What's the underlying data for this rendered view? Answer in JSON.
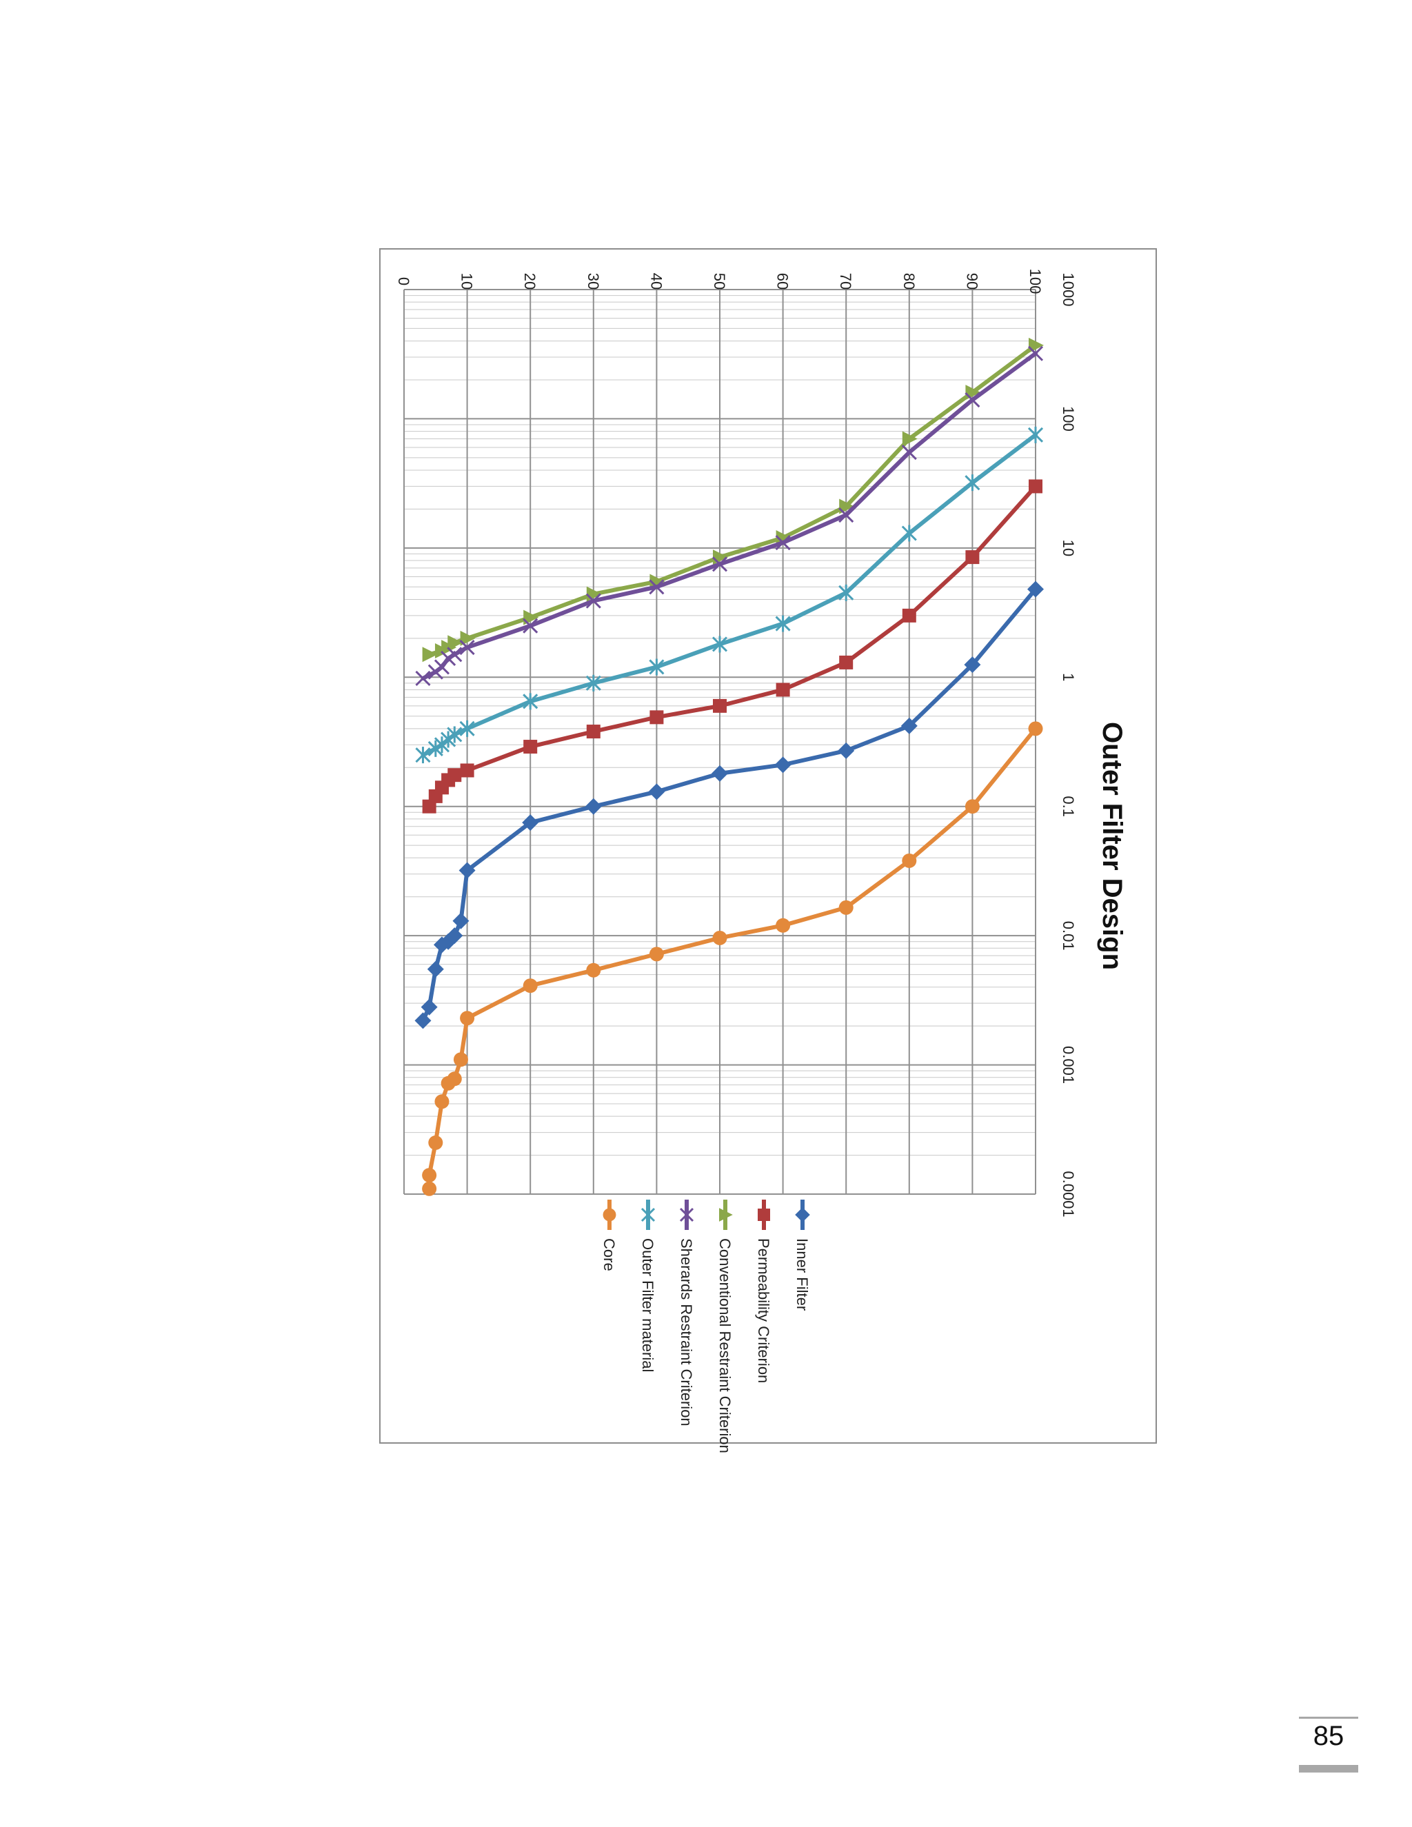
{
  "page": {
    "number": "85"
  },
  "chart_data": {
    "type": "line",
    "orientation": "rotated 90 degrees clockwise",
    "title": "Outer Filter Design",
    "xlabel": "",
    "ylabel": "",
    "x_scale": "log",
    "x_ticks": [
      "1000",
      "100",
      "10",
      "1",
      "0.1",
      "0.01",
      "0.001",
      "0.0001"
    ],
    "y_ticks": [
      "0",
      "10",
      "20",
      "30",
      "40",
      "50",
      "60",
      "70",
      "80",
      "90",
      "100"
    ],
    "xlim": [
      1000,
      0.0001
    ],
    "ylim": [
      0,
      100
    ],
    "grid": true,
    "legend_position": "below the plot, rotated with the chart",
    "series": [
      {
        "name": "Inner Filter",
        "color": "#3a6aad",
        "marker": "diamond",
        "x": [
          4.8,
          1.25,
          0.42,
          0.27,
          0.21,
          0.18,
          0.13,
          0.1,
          0.075,
          0.032,
          0.013,
          0.01,
          0.009,
          0.0085,
          0.0055,
          0.0028,
          0.0022
        ],
        "y": [
          100,
          90,
          80,
          70,
          60,
          50,
          40,
          30,
          20,
          10,
          9,
          8,
          7,
          6,
          5,
          4,
          3
        ]
      },
      {
        "name": "Permeability Criterion",
        "color": "#b03c3c",
        "marker": "square",
        "x": [
          30,
          8.5,
          3.0,
          1.3,
          0.8,
          0.6,
          0.49,
          0.38,
          0.29,
          0.19,
          0.175,
          0.16,
          0.14,
          0.12,
          0.1
        ],
        "y": [
          100,
          90,
          80,
          70,
          60,
          50,
          40,
          30,
          20,
          10,
          8,
          7,
          6,
          5,
          4
        ]
      },
      {
        "name": "Conventional Restraint Criterion",
        "color": "#8ba84a",
        "marker": "triangle",
        "x": [
          370,
          160,
          70,
          21,
          12,
          8.5,
          5.5,
          4.4,
          2.9,
          2.0,
          1.85,
          1.7,
          1.6,
          1.5
        ],
        "y": [
          100,
          90,
          80,
          70,
          60,
          50,
          40,
          30,
          20,
          10,
          8,
          7,
          6,
          4
        ]
      },
      {
        "name": "Sherards Restraint Criterion",
        "color": "#6f4f98",
        "marker": "x",
        "x": [
          320,
          140,
          55,
          18,
          11,
          7.5,
          5.0,
          3.9,
          2.5,
          1.7,
          1.5,
          1.4,
          1.2,
          1.1,
          0.98
        ],
        "y": [
          100,
          90,
          80,
          70,
          60,
          50,
          40,
          30,
          20,
          10,
          8,
          7,
          6,
          5,
          3
        ]
      },
      {
        "name": "Outer Filter material",
        "color": "#4aa0b8",
        "marker": "star",
        "x": [
          75,
          32,
          13,
          4.5,
          2.6,
          1.8,
          1.2,
          0.9,
          0.65,
          0.4,
          0.36,
          0.33,
          0.3,
          0.28,
          0.25
        ],
        "y": [
          100,
          90,
          80,
          70,
          60,
          50,
          40,
          30,
          20,
          10,
          8,
          7,
          6,
          5,
          3
        ]
      },
      {
        "name": "Core",
        "color": "#e3893b",
        "marker": "circle",
        "x": [
          0.4,
          0.1,
          0.038,
          0.0165,
          0.012,
          0.0096,
          0.0072,
          0.0054,
          0.0041,
          0.0023,
          0.0011,
          0.00078,
          0.00072,
          0.00052,
          0.00025,
          0.00014,
          0.00011
        ],
        "y": [
          100,
          90,
          80,
          70,
          60,
          50,
          40,
          30,
          20,
          10,
          9,
          8,
          7,
          6,
          5,
          4,
          4
        ]
      }
    ]
  }
}
